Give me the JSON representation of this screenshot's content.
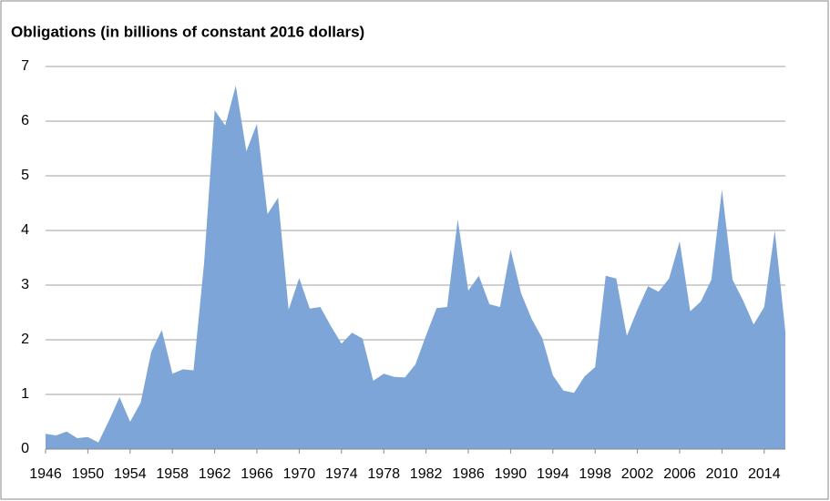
{
  "chart_data": {
    "type": "area",
    "title": "Obligations (in billions of constant 2016 dollars)",
    "x": [
      1946,
      1947,
      1948,
      1949,
      1950,
      1951,
      1952,
      1953,
      1954,
      1955,
      1956,
      1957,
      1958,
      1959,
      1960,
      1961,
      1962,
      1963,
      1964,
      1965,
      1966,
      1967,
      1968,
      1969,
      1970,
      1971,
      1972,
      1973,
      1974,
      1975,
      1976,
      1977,
      1978,
      1979,
      1980,
      1981,
      1982,
      1983,
      1984,
      1985,
      1986,
      1987,
      1988,
      1989,
      1990,
      1991,
      1992,
      1993,
      1994,
      1995,
      1996,
      1997,
      1998,
      1999,
      2000,
      2001,
      2002,
      2003,
      2004,
      2005,
      2006,
      2007,
      2008,
      2009,
      2010,
      2011,
      2012,
      2013,
      2014,
      2015,
      2016
    ],
    "values": [
      0.28,
      0.25,
      0.32,
      0.2,
      0.22,
      0.12,
      0.52,
      0.95,
      0.5,
      0.85,
      1.78,
      2.18,
      1.38,
      1.46,
      1.44,
      3.4,
      6.2,
      5.92,
      6.65,
      5.45,
      5.95,
      4.3,
      4.6,
      2.55,
      3.13,
      2.57,
      2.6,
      2.25,
      1.93,
      2.13,
      2.02,
      1.25,
      1.38,
      1.32,
      1.31,
      1.55,
      2.08,
      2.58,
      2.6,
      4.2,
      2.9,
      3.17,
      2.65,
      2.6,
      3.65,
      2.85,
      2.38,
      2.03,
      1.35,
      1.07,
      1.03,
      1.33,
      1.5,
      3.17,
      3.12,
      2.07,
      2.55,
      2.98,
      2.88,
      3.12,
      3.8,
      2.52,
      2.7,
      3.1,
      4.75,
      3.1,
      2.72,
      2.28,
      2.6,
      4.0,
      2.15
    ],
    "color": "#7da5d8",
    "xlim": [
      1946,
      2016
    ],
    "xticks": [
      1946,
      1950,
      1954,
      1958,
      1962,
      1966,
      1970,
      1974,
      1978,
      1982,
      1986,
      1990,
      1994,
      1998,
      2002,
      2006,
      2010,
      2014
    ],
    "ylim": [
      0,
      7
    ],
    "yticks": [
      0,
      1,
      2,
      3,
      4,
      5,
      6,
      7
    ],
    "grid": true
  }
}
